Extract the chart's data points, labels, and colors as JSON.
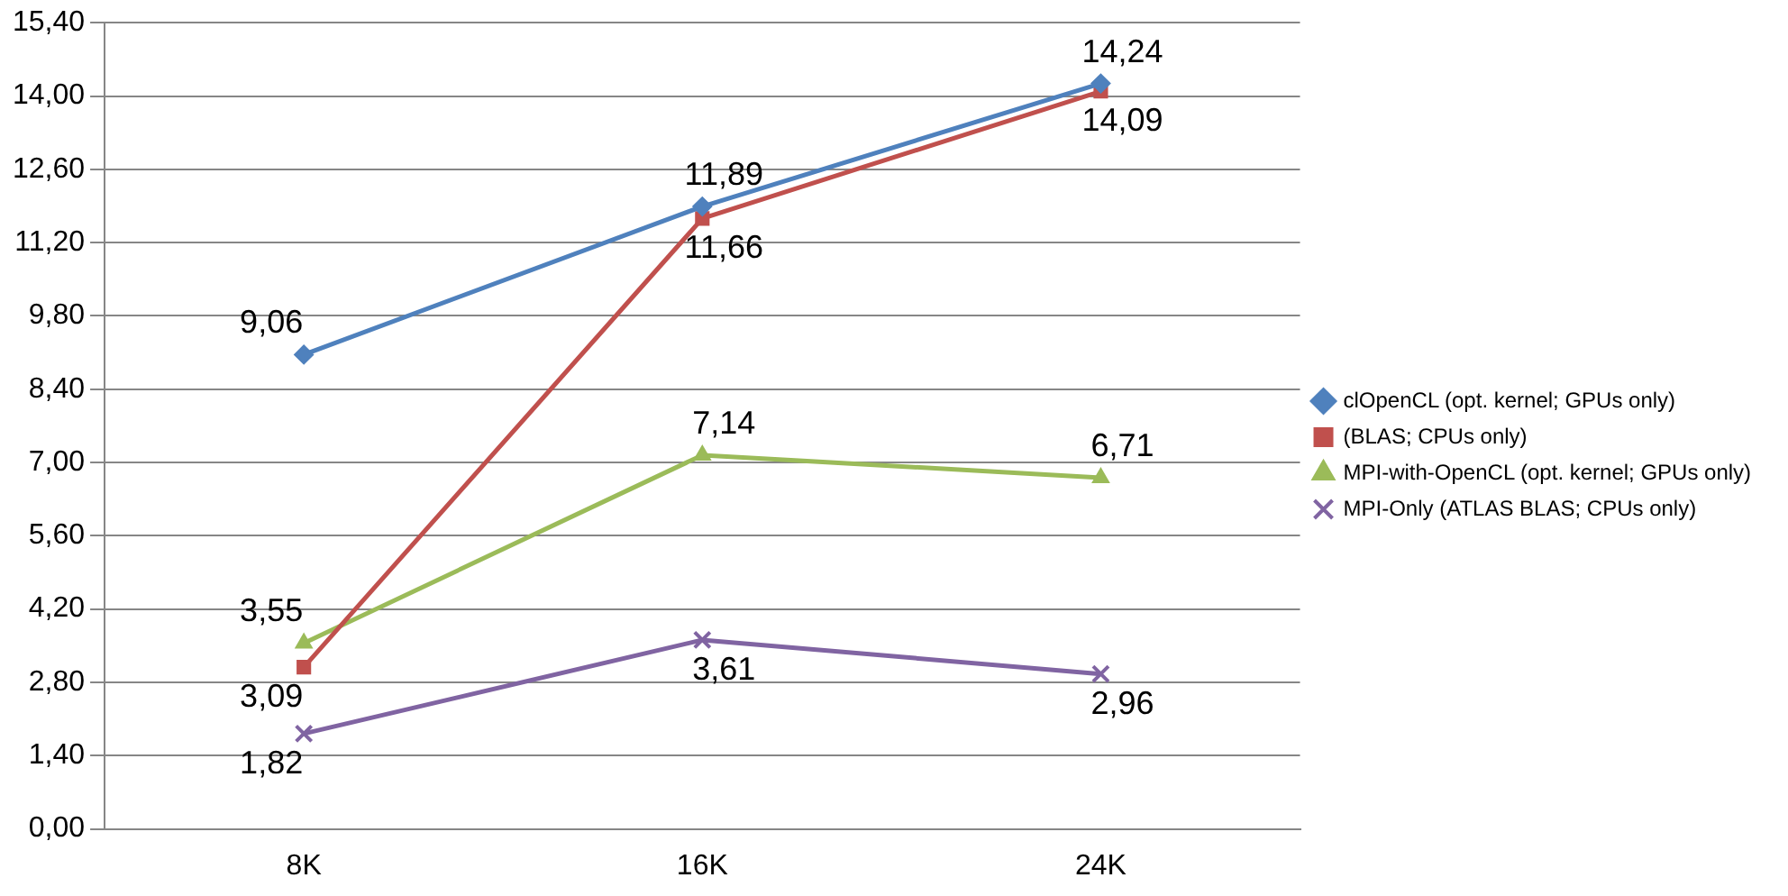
{
  "chart_data": {
    "type": "line",
    "categories": [
      "8K",
      "16K",
      "24K"
    ],
    "series": [
      {
        "name": "clOpenCL (opt. kernel; GPUs only)",
        "color": "#4f81bd",
        "marker": "diamond",
        "values": [
          9.06,
          11.89,
          14.24
        ],
        "value_labels": [
          "9,06",
          "11,89",
          "14,24"
        ]
      },
      {
        "name": "(BLAS; CPUs only)",
        "color": "#c0504d",
        "marker": "square",
        "values": [
          3.09,
          11.66,
          14.09
        ],
        "value_labels": [
          "3,09",
          "11,66",
          "14,09"
        ]
      },
      {
        "name": "MPI-with-OpenCL (opt. kernel; GPUs only)",
        "color": "#9bbb59",
        "marker": "triangle",
        "values": [
          3.55,
          7.14,
          6.71
        ],
        "value_labels": [
          "3,55",
          "7,14",
          "6,71"
        ]
      },
      {
        "name": "MPI-Only (ATLAS BLAS; CPUs only)",
        "color": "#8064a2",
        "marker": "cross",
        "values": [
          1.82,
          3.61,
          2.96
        ],
        "value_labels": [
          "1,82",
          "3,61",
          "2,96"
        ]
      }
    ],
    "ylim": [
      0,
      15.4
    ],
    "yticks": [
      {
        "value": 0,
        "label": "0,00"
      },
      {
        "value": 1.4,
        "label": "1,40"
      },
      {
        "value": 2.8,
        "label": "2,80"
      },
      {
        "value": 4.2,
        "label": "4,20"
      },
      {
        "value": 5.6,
        "label": "5,60"
      },
      {
        "value": 7,
        "label": "7,00"
      },
      {
        "value": 8.4,
        "label": "8,40"
      },
      {
        "value": 9.8,
        "label": "9,80"
      },
      {
        "value": 11.2,
        "label": "11,20"
      },
      {
        "value": 12.6,
        "label": "12,60"
      },
      {
        "value": 14,
        "label": "14,00"
      },
      {
        "value": 15.4,
        "label": "15,40"
      }
    ],
    "grid": "y",
    "legend": "right",
    "line_style": "solid"
  }
}
